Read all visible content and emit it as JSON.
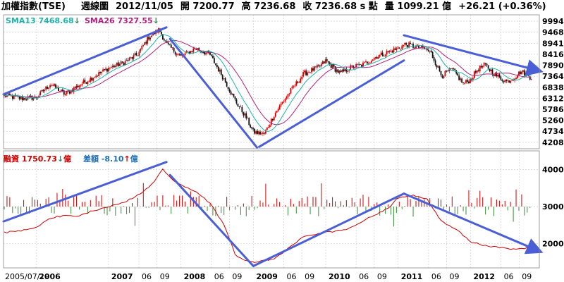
{
  "header": {
    "title": "加權指數(TSE)",
    "period": "週線圖",
    "date": "2012/11/05",
    "open": "開 7200.77",
    "high": "高 7236.68",
    "close": "收 7236.68 s 點",
    "volume": "量 1099.21 億",
    "change": "+26.21 (+0.36%)"
  },
  "legend": {
    "sma13": "SMA13 7468.68",
    "sma13_arrow": "↓",
    "sma26": "SMA26 7327.55",
    "sma26_arrow": "↓",
    "margin": "融資 1750.73",
    "margin_arrow": "↓",
    "margin_unit": "億",
    "diff": "差額 -8.10",
    "diff_arrow": "↑",
    "diff_unit": "億"
  },
  "colors": {
    "up_candle": "#cc0000",
    "down_candle": "#111111",
    "sma13": "#20b2aa",
    "sma26": "#b0237f",
    "trendline": "#4a5fd6",
    "margin_line": "#cc0000",
    "bar_up": "#cc0000",
    "bar_down": "#3a8a3a",
    "grid": "#c8c8c8"
  },
  "chart_data": [
    {
      "type": "candlestick",
      "title": "加權指數(TSE) 週線圖",
      "xlabel": "",
      "ylabel": "",
      "ylim": [
        3900,
        10300
      ],
      "y_ticks": [
        "9994",
        "9468",
        "8941",
        "8416",
        "7890",
        "7364",
        "6838",
        "6312",
        "5786",
        "5260",
        "4734",
        "4208"
      ],
      "x_ticks": [
        "2005/07/19",
        "2006",
        "2007",
        "06",
        "09",
        "2008",
        "06",
        "09",
        "2009",
        "06",
        "09",
        "2010",
        "06",
        "09",
        "2011",
        "06",
        "09",
        "2012",
        "06",
        "09"
      ],
      "x_ticks_year": [
        false,
        true,
        true,
        false,
        false,
        true,
        false,
        false,
        true,
        false,
        false,
        true,
        false,
        false,
        true,
        false,
        false,
        true,
        false,
        false
      ],
      "anchors_x": [
        2005.55,
        2005.8,
        2006.0,
        2006.2,
        2006.4,
        2006.6,
        2006.8,
        2007.0,
        2007.2,
        2007.4,
        2007.55,
        2007.7,
        2007.8,
        2008.0,
        2008.2,
        2008.4,
        2008.6,
        2008.75,
        2008.9,
        2009.0,
        2009.15,
        2009.3,
        2009.5,
        2009.7,
        2009.9,
        2010.0,
        2010.2,
        2010.35,
        2010.5,
        2010.7,
        2010.85,
        2011.0,
        2011.1,
        2011.2,
        2011.35,
        2011.45,
        2011.6,
        2011.75,
        2011.9,
        2012.0,
        2012.1,
        2012.2,
        2012.35,
        2012.5,
        2012.6,
        2012.7,
        2012.8,
        2012.85
      ],
      "anchors_close": [
        6450,
        6300,
        6350,
        7000,
        6500,
        6950,
        7350,
        7750,
        8000,
        8400,
        9200,
        9600,
        8900,
        8300,
        8700,
        8400,
        7200,
        6200,
        5400,
        4700,
        4600,
        5600,
        6600,
        7500,
        7800,
        8100,
        7500,
        7800,
        7900,
        8300,
        8500,
        8700,
        8900,
        8800,
        8700,
        8500,
        7400,
        7700,
        7000,
        7200,
        7700,
        7900,
        7400,
        7100,
        7300,
        7600,
        7400,
        7236.68
      ],
      "sma13_last": 7468.68,
      "sma26_last": 7327.55,
      "trendlines": [
        {
          "from": [
            2005.55,
            6500
          ],
          "to": [
            2007.8,
            9700
          ]
        },
        {
          "from": [
            2007.85,
            9150
          ],
          "to": [
            2009.05,
            3960
          ]
        },
        {
          "from": [
            2009.08,
            3990
          ],
          "to": [
            2011.08,
            8120
          ]
        },
        {
          "from": [
            2011.08,
            9320
          ],
          "to": [
            2012.95,
            7620
          ]
        }
      ]
    },
    {
      "type": "bar+line",
      "title": "融資 / 差額",
      "ylim": [
        1350,
        4500
      ],
      "y_ticks": [
        "4000",
        "3000",
        "2000"
      ],
      "margin_balance": {
        "x": [
          2005.55,
          2005.8,
          2006.0,
          2006.2,
          2006.4,
          2006.6,
          2006.8,
          2007.0,
          2007.2,
          2007.4,
          2007.6,
          2007.75,
          2007.9,
          2008.0,
          2008.2,
          2008.4,
          2008.6,
          2008.75,
          2008.9,
          2009.0,
          2009.3,
          2009.5,
          2009.7,
          2010.0,
          2010.3,
          2010.6,
          2010.9,
          2011.0,
          2011.2,
          2011.4,
          2011.6,
          2011.8,
          2012.0,
          2012.2,
          2012.4,
          2012.6,
          2012.8,
          2012.85
        ],
        "y": [
          2300,
          2350,
          2450,
          2700,
          2750,
          2750,
          2900,
          3000,
          3100,
          3300,
          3600,
          4000,
          3700,
          3600,
          3400,
          3100,
          2500,
          1700,
          1550,
          1500,
          1600,
          1900,
          2200,
          2300,
          2400,
          2700,
          3000,
          3250,
          3300,
          3200,
          2600,
          2400,
          2050,
          1950,
          1900,
          1850,
          1900,
          1750.73
        ]
      },
      "trendlines": [
        {
          "from": [
            2005.55,
            2600
          ],
          "to": [
            2007.8,
            4200
          ]
        },
        {
          "from": [
            2007.85,
            3850
          ],
          "to": [
            2009.0,
            1400
          ]
        },
        {
          "from": [
            2009.0,
            1400
          ],
          "to": [
            2011.08,
            3350
          ]
        },
        {
          "from": [
            2011.08,
            3350
          ],
          "to": [
            2012.95,
            1800
          ]
        }
      ]
    }
  ]
}
